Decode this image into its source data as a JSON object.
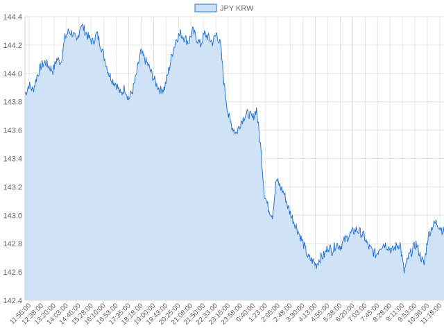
{
  "chart_data": {
    "type": "area",
    "title": "",
    "xlabel": "",
    "ylabel": "",
    "legend": {
      "position": "top-center",
      "entries": [
        "JPY KRW"
      ]
    },
    "grid": true,
    "ylim": [
      142.4,
      144.4
    ],
    "yticks": [
      "142.4",
      "142.6",
      "142.8",
      "143.0",
      "143.2",
      "143.4",
      "143.6",
      "143.8",
      "144.0",
      "144.2",
      "144.4"
    ],
    "x_tick_labels": [
      "11:55:00",
      "12:38:00",
      "13:20:00",
      "14:03:00",
      "14:45:00",
      "15:28:00",
      "16:10:00",
      "16:53:00",
      "17:35:00",
      "18:18:00",
      "19:00:00",
      "19:43:00",
      "20:25:00",
      "21:08:00",
      "21:50:00",
      "22:33:00",
      "23:15:00",
      "23:58:00",
      "0:40:00",
      "1:23:00",
      "2:05:00",
      "2:48:00",
      "3:30:00",
      "4:13:00",
      "4:55:00",
      "5:38:00",
      "6:20:00",
      "7:03:00",
      "7:45:00",
      "8:28:00",
      "9:11:00",
      "9:53:00",
      "10:36:00",
      "11:18:00"
    ],
    "colors": {
      "line": "#2a75cc",
      "fill": "#cce0f5"
    },
    "series": [
      {
        "name": "JPY KRW",
        "values": [
          143.85,
          143.92,
          143.88,
          143.98,
          144.05,
          144.08,
          144.05,
          144.02,
          144.1,
          144.08,
          144.25,
          144.3,
          144.28,
          144.22,
          144.35,
          144.3,
          144.25,
          144.22,
          144.28,
          144.2,
          144.1,
          144.0,
          143.95,
          143.92,
          143.85,
          143.9,
          143.82,
          143.88,
          144.0,
          144.15,
          144.1,
          144.05,
          143.98,
          143.92,
          143.88,
          143.9,
          144.02,
          144.15,
          144.25,
          144.28,
          144.25,
          144.22,
          144.3,
          144.25,
          144.2,
          144.28,
          144.25,
          144.22,
          144.28,
          144.2,
          143.9,
          143.7,
          143.62,
          143.58,
          143.65,
          143.7,
          143.72,
          143.68,
          143.75,
          143.5,
          143.15,
          143.05,
          143.0,
          143.25,
          143.2,
          143.15,
          143.05,
          142.98,
          142.92,
          142.85,
          142.78,
          142.7,
          142.68,
          142.65,
          142.7,
          142.72,
          142.78,
          142.75,
          142.8,
          142.78,
          142.82,
          142.85,
          142.88,
          142.9,
          142.88,
          142.85,
          142.78,
          142.75,
          142.72,
          142.78,
          142.8,
          142.78,
          142.75,
          142.78,
          142.8,
          142.6,
          142.7,
          142.75,
          142.8,
          142.72,
          142.65,
          142.85,
          142.92,
          142.95,
          142.92,
          142.88
        ]
      }
    ]
  }
}
